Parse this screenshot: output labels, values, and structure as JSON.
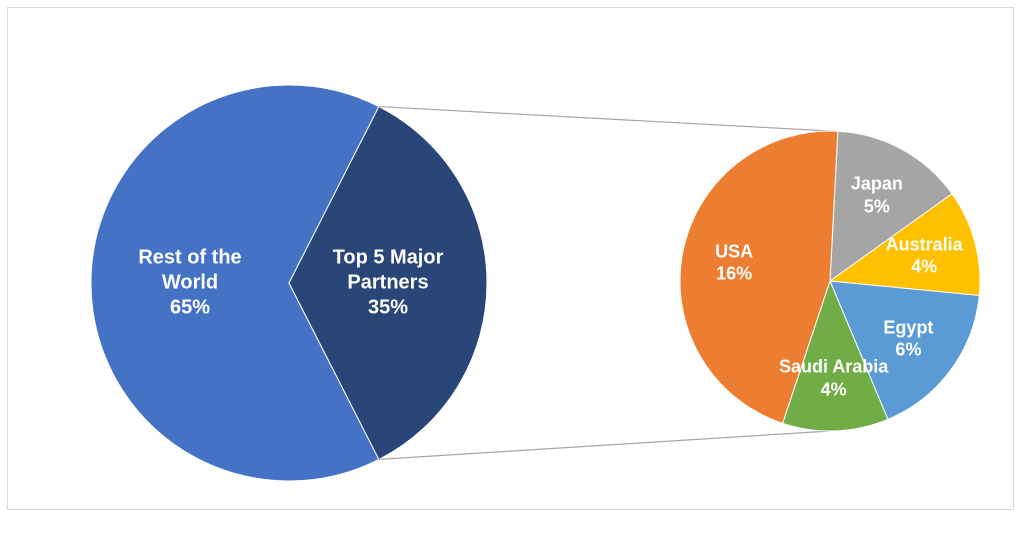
{
  "chart_data": {
    "type": "pie-of-pie",
    "series": [
      {
        "categories": [
          "Rest of the World",
          "Top 5 Major Partners"
        ],
        "values": [
          65,
          35
        ],
        "value_labels": [
          "65%",
          "35%"
        ],
        "colors": [
          "#4472c4",
          "#2a4577"
        ]
      },
      {
        "categories": [
          "Japan",
          "Australia",
          "Egypt",
          "Saudi Arabia",
          "USA"
        ],
        "values": [
          5,
          4,
          6,
          4,
          16
        ],
        "value_labels": [
          "5%",
          "4%",
          "6%",
          "4%",
          "16%"
        ],
        "colors": [
          "#a5a5a5",
          "#ffc000",
          "#5b9bd5",
          "#70ad47",
          "#ed7d31"
        ]
      }
    ]
  }
}
